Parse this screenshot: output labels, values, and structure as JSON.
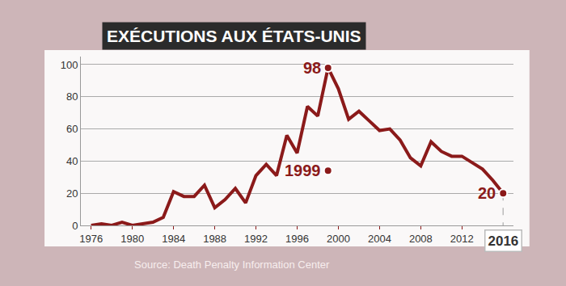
{
  "chart_data": {
    "type": "line",
    "title": "EXÉCUTIONS AUX ÉTATS-UNIS",
    "source": "Source: Death Penalty Information Center",
    "x": [
      1976,
      1977,
      1978,
      1979,
      1980,
      1981,
      1982,
      1983,
      1984,
      1985,
      1986,
      1987,
      1988,
      1989,
      1990,
      1991,
      1992,
      1993,
      1994,
      1995,
      1996,
      1997,
      1998,
      1999,
      2000,
      2001,
      2002,
      2003,
      2004,
      2005,
      2006,
      2007,
      2008,
      2009,
      2010,
      2011,
      2012,
      2013,
      2014,
      2015,
      2016
    ],
    "values": [
      0,
      1,
      0,
      2,
      0,
      1,
      2,
      5,
      21,
      18,
      18,
      25,
      11,
      16,
      23,
      14,
      31,
      38,
      31,
      56,
      45,
      74,
      68,
      98,
      85,
      66,
      71,
      65,
      59,
      60,
      53,
      42,
      37,
      52,
      46,
      43,
      43,
      39,
      35,
      28,
      20
    ],
    "color": "#8b1a1a",
    "xlim": [
      1975,
      2017
    ],
    "xticks": [
      1976,
      1980,
      1984,
      1988,
      1992,
      1996,
      2000,
      2004,
      2008,
      2012
    ],
    "ylim": [
      0,
      105
    ],
    "yticks": [
      0,
      20,
      40,
      60,
      80,
      100
    ],
    "grid": true,
    "annotations": [
      {
        "text": "98",
        "x": 1999,
        "y": 98
      },
      {
        "text": "1999",
        "x": 1999,
        "y": 34
      },
      {
        "text": "20",
        "x": 2016,
        "y": 20
      },
      {
        "text": "2016",
        "x": 2016
      }
    ]
  }
}
